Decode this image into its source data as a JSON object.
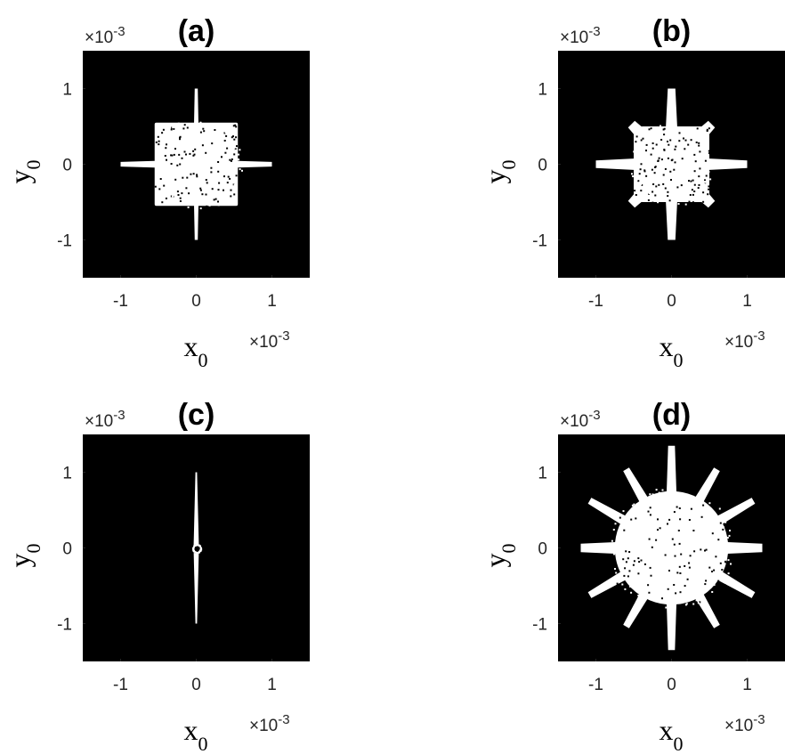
{
  "chart_data": [
    {
      "type": "scatter",
      "title": "(a)",
      "xlabel": "x",
      "xlabel_sub": "0",
      "ylabel": "y",
      "ylabel_sub": "0",
      "x_exponent": "×10",
      "x_exponent_power": "-3",
      "y_exponent": "×10",
      "y_exponent_power": "-3",
      "xlim": [
        -1.5,
        1.5
      ],
      "ylim": [
        -1.5,
        1.5
      ],
      "xticks": [
        "-1",
        "0",
        "1"
      ],
      "yticks": [
        "1",
        "0",
        "-1"
      ],
      "background": "#000000",
      "marker_color": "#ffffff",
      "shape": "square with four arms",
      "core_half_width": 0.55,
      "arms": [
        {
          "angle_deg": 0,
          "length": 1.0,
          "width": 0.12
        },
        {
          "angle_deg": 90,
          "length": 1.0,
          "width": 0.08
        },
        {
          "angle_deg": 180,
          "length": 1.0,
          "width": 0.12
        },
        {
          "angle_deg": 270,
          "length": 1.0,
          "width": 0.08
        }
      ]
    },
    {
      "type": "scatter",
      "title": "(b)",
      "xlabel": "x",
      "xlabel_sub": "0",
      "ylabel": "y",
      "ylabel_sub": "0",
      "x_exponent": "×10",
      "x_exponent_power": "-3",
      "y_exponent": "×10",
      "y_exponent_power": "-3",
      "xlim": [
        -1.5,
        1.5
      ],
      "ylim": [
        -1.5,
        1.5
      ],
      "xticks": [
        "-1",
        "0",
        "1"
      ],
      "yticks": [
        "1",
        "0",
        "-1"
      ],
      "background": "#000000",
      "marker_color": "#ffffff",
      "shape": "eight-pointed star",
      "core_half_width": 0.5,
      "arms": [
        {
          "angle_deg": 0,
          "length": 1.0,
          "width": 0.2
        },
        {
          "angle_deg": 45,
          "length": 0.75,
          "width": 0.25
        },
        {
          "angle_deg": 90,
          "length": 1.0,
          "width": 0.2
        },
        {
          "angle_deg": 135,
          "length": 0.75,
          "width": 0.25
        },
        {
          "angle_deg": 180,
          "length": 1.0,
          "width": 0.2
        },
        {
          "angle_deg": 225,
          "length": 0.75,
          "width": 0.25
        },
        {
          "angle_deg": 270,
          "length": 1.0,
          "width": 0.2
        },
        {
          "angle_deg": 315,
          "length": 0.75,
          "width": 0.25
        }
      ]
    },
    {
      "type": "scatter",
      "title": "(c)",
      "xlabel": "x",
      "xlabel_sub": "0",
      "ylabel": "y",
      "ylabel_sub": "0",
      "x_exponent": "×10",
      "x_exponent_power": "-3",
      "y_exponent": "×10",
      "y_exponent_power": "-3",
      "xlim": [
        -1.5,
        1.5
      ],
      "ylim": [
        -1.5,
        1.5
      ],
      "xticks": [
        "-1",
        "0",
        "1"
      ],
      "yticks": [
        "1",
        "0",
        "-1"
      ],
      "background": "#000000",
      "marker_color": "#ffffff",
      "shape": "vertical line",
      "core_half_width": 0,
      "arms": [
        {
          "angle_deg": 90,
          "length": 1.0,
          "width": 0.07
        },
        {
          "angle_deg": 270,
          "length": 1.0,
          "width": 0.07
        }
      ]
    },
    {
      "type": "scatter",
      "title": "(d)",
      "xlabel": "x",
      "xlabel_sub": "0",
      "ylabel": "y",
      "ylabel_sub": "0",
      "x_exponent": "×10",
      "x_exponent_power": "-3",
      "y_exponent": "×10",
      "y_exponent_power": "-3",
      "xlim": [
        -1.5,
        1.5
      ],
      "ylim": [
        -1.5,
        1.5
      ],
      "xticks": [
        "-1",
        "0",
        "1"
      ],
      "yticks": [
        "1",
        "0",
        "-1"
      ],
      "background": "#000000",
      "marker_color": "#ffffff",
      "shape": "twelve-pointed star",
      "core_half_width": 0.75,
      "arms": [
        {
          "angle_deg": 0,
          "length": 1.2,
          "width": 0.22
        },
        {
          "angle_deg": 30,
          "length": 1.25,
          "width": 0.18
        },
        {
          "angle_deg": 60,
          "length": 1.2,
          "width": 0.18
        },
        {
          "angle_deg": 90,
          "length": 1.35,
          "width": 0.18
        },
        {
          "angle_deg": 120,
          "length": 1.2,
          "width": 0.18
        },
        {
          "angle_deg": 150,
          "length": 1.25,
          "width": 0.18
        },
        {
          "angle_deg": 180,
          "length": 1.2,
          "width": 0.22
        },
        {
          "angle_deg": 210,
          "length": 1.25,
          "width": 0.18
        },
        {
          "angle_deg": 240,
          "length": 1.2,
          "width": 0.18
        },
        {
          "angle_deg": 270,
          "length": 1.35,
          "width": 0.18
        },
        {
          "angle_deg": 300,
          "length": 1.2,
          "width": 0.18
        },
        {
          "angle_deg": 330,
          "length": 1.25,
          "width": 0.18
        }
      ]
    }
  ]
}
